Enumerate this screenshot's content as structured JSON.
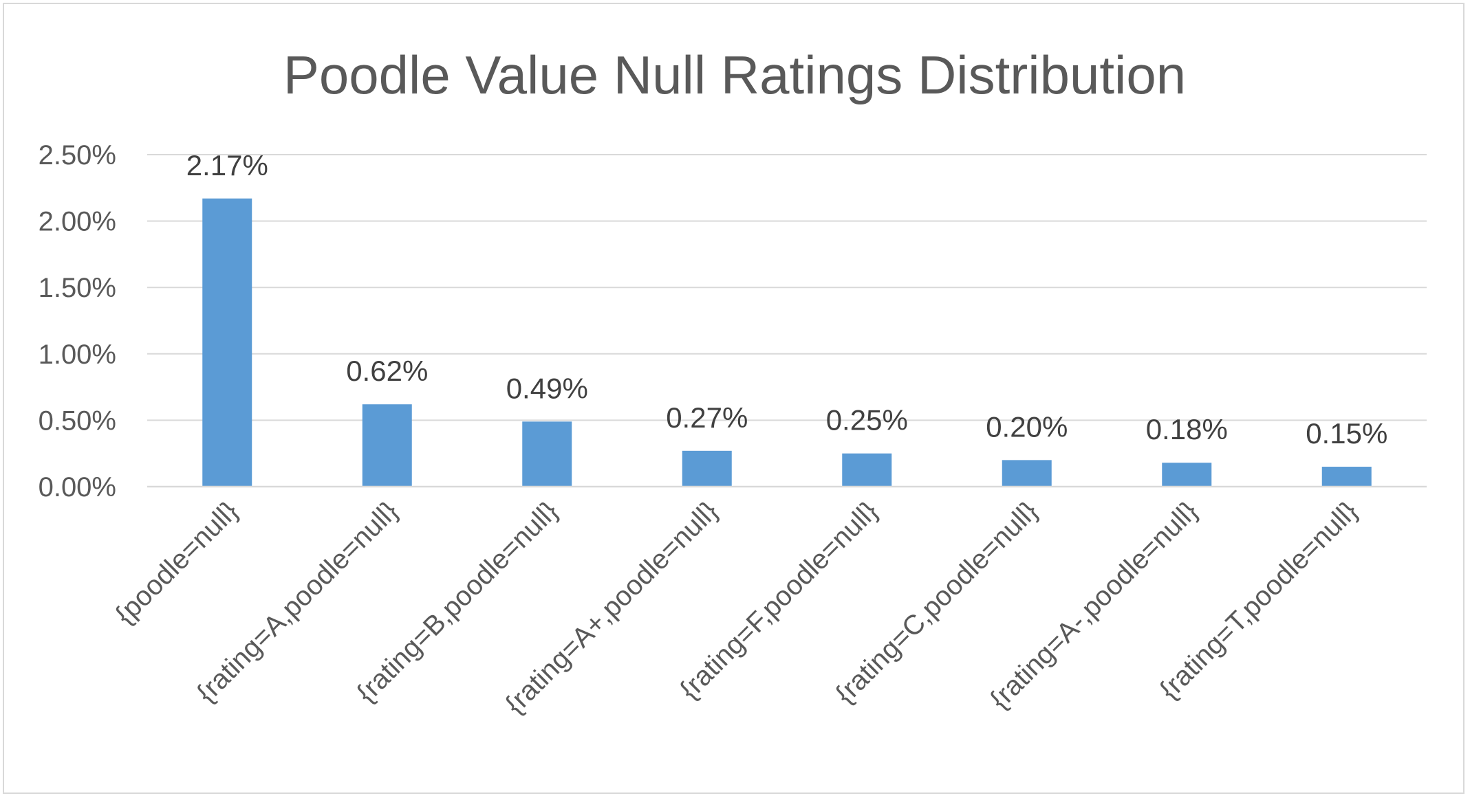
{
  "chart_data": {
    "type": "bar",
    "title": "Poodle Value Null Ratings Distribution",
    "xlabel": "",
    "ylabel": "",
    "categories": [
      "{poodle=null}",
      "{rating=A,poodle=null}",
      "{rating=B,poodle=null}",
      "{rating=A+,poodle=null}",
      "{rating=F,poodle=null}",
      "{rating=C,poodle=null}",
      "{rating=A-,poodle=null}",
      "{rating=T,poodle=null}"
    ],
    "values": [
      2.17,
      0.62,
      0.49,
      0.27,
      0.25,
      0.2,
      0.18,
      0.15
    ],
    "data_labels": [
      "2.17%",
      "0.62%",
      "0.49%",
      "0.27%",
      "0.25%",
      "0.20%",
      "0.18%",
      "0.15%"
    ],
    "ylim": [
      0,
      2.5
    ],
    "yticks": [
      0,
      0.5,
      1.0,
      1.5,
      2.0,
      2.5
    ],
    "ytick_labels": [
      "0.00%",
      "0.50%",
      "1.00%",
      "1.50%",
      "2.00%",
      "2.50%"
    ],
    "grid": true,
    "legend": "none",
    "bar_color": "#5b9bd5"
  }
}
